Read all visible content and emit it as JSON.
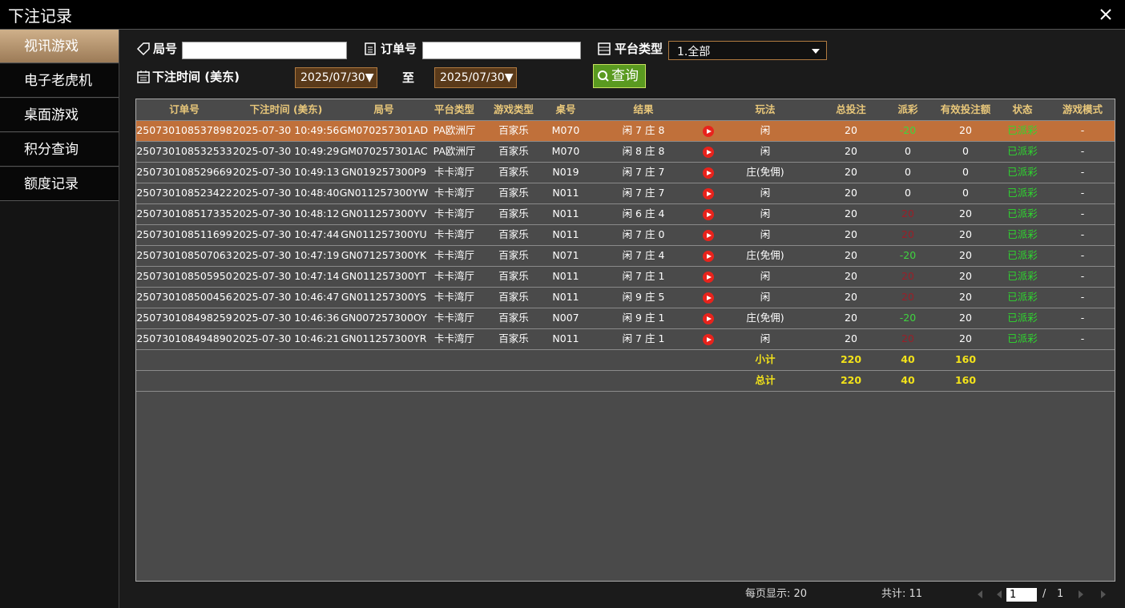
{
  "header": {
    "title": "下注记录"
  },
  "sidebar": {
    "items": [
      "视讯游戏",
      "电子老虎机",
      "桌面游戏",
      "积分查询",
      "额度记录"
    ],
    "active": 0
  },
  "filters": {
    "round_label": "局号",
    "order_label": "订单号",
    "platform_label": "平台类型",
    "platform_value": "1.全部",
    "time_label": "下注时间 (美东)",
    "date_from": "2025/07/30",
    "date_sep": "至",
    "date_to": "2025/07/30",
    "search": "查询"
  },
  "table": {
    "headers": [
      "订单号",
      "下注时间 (美东)",
      "局号",
      "平台类型",
      "游戏类型",
      "桌号",
      "结果",
      "玩法",
      "总投注",
      "派彩",
      "有效投注额",
      "状态",
      "游戏模式"
    ],
    "selected_row": 0,
    "rows": [
      [
        "250730108537898",
        "2025-07-30 10:49:56",
        "GM070257301AD",
        "PA欧洲厅",
        "百家乐",
        "M070",
        "闲 7 庄 8",
        "闲",
        20,
        -20,
        20,
        "已派彩",
        "-"
      ],
      [
        "250730108532533",
        "2025-07-30 10:49:29",
        "GM070257301AC",
        "PA欧洲厅",
        "百家乐",
        "M070",
        "闲 8 庄 8",
        "闲",
        20,
        0,
        0,
        "已派彩",
        "-"
      ],
      [
        "250730108529669",
        "2025-07-30 10:49:13",
        "GN019257300P9",
        "卡卡湾厅",
        "百家乐",
        "N019",
        "闲 7 庄 7",
        "庄(免佣)",
        20,
        0,
        0,
        "已派彩",
        "-"
      ],
      [
        "250730108523422",
        "2025-07-30 10:48:40",
        "GN011257300YW",
        "卡卡湾厅",
        "百家乐",
        "N011",
        "闲 7 庄 7",
        "闲",
        20,
        0,
        0,
        "已派彩",
        "-"
      ],
      [
        "250730108517335",
        "2025-07-30 10:48:12",
        "GN011257300YV",
        "卡卡湾厅",
        "百家乐",
        "N011",
        "闲 6 庄 4",
        "闲",
        20,
        20,
        20,
        "已派彩",
        "-"
      ],
      [
        "250730108511699",
        "2025-07-30 10:47:44",
        "GN011257300YU",
        "卡卡湾厅",
        "百家乐",
        "N011",
        "闲 7 庄 0",
        "闲",
        20,
        20,
        20,
        "已派彩",
        "-"
      ],
      [
        "250730108507063",
        "2025-07-30 10:47:19",
        "GN071257300YK",
        "卡卡湾厅",
        "百家乐",
        "N071",
        "闲 7 庄 4",
        "庄(免佣)",
        20,
        -20,
        20,
        "已派彩",
        "-"
      ],
      [
        "250730108505950",
        "2025-07-30 10:47:14",
        "GN011257300YT",
        "卡卡湾厅",
        "百家乐",
        "N011",
        "闲 7 庄 1",
        "闲",
        20,
        20,
        20,
        "已派彩",
        "-"
      ],
      [
        "250730108500456",
        "2025-07-30 10:46:47",
        "GN011257300YS",
        "卡卡湾厅",
        "百家乐",
        "N011",
        "闲 9 庄 5",
        "闲",
        20,
        20,
        20,
        "已派彩",
        "-"
      ],
      [
        "250730108498259",
        "2025-07-30 10:46:36",
        "GN007257300OY",
        "卡卡湾厅",
        "百家乐",
        "N007",
        "闲 9 庄 1",
        "庄(免佣)",
        20,
        -20,
        20,
        "已派彩",
        "-"
      ],
      [
        "250730108494890",
        "2025-07-30 10:46:21",
        "GN011257300YR",
        "卡卡湾厅",
        "百家乐",
        "N011",
        "闲 7 庄 1",
        "闲",
        20,
        20,
        20,
        "已派彩",
        "-"
      ]
    ],
    "summary": [
      {
        "label": "小计",
        "bet": 220,
        "payout": 40,
        "valid": 160
      },
      {
        "label": "总计",
        "bet": 220,
        "payout": 40,
        "valid": 160
      }
    ]
  },
  "footer": {
    "per_page": "每页显示: 20",
    "total": "共计: 11",
    "page": "1",
    "page_sep": "/",
    "pages": "1"
  }
}
